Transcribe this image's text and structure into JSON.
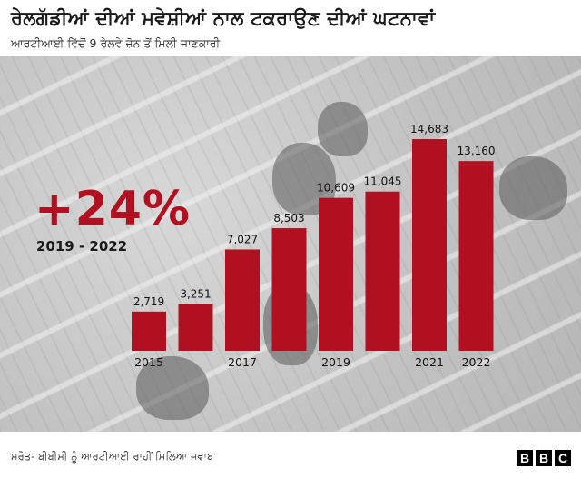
{
  "title": "ਰੇਲਗੱਡੀਆਂ ਦੀਆਂ ਮਵੇਸ਼ੀਆਂ ਨਾਲ ਟਕਰਾਉਣ ਦੀਆਂ ਘਟਨਾਵਾਂ",
  "subtitle": "ਆਰਟੀਆਈ ਵਿੱਚੋਂ 9 ਰੇਲਵੇ ਜ਼ੋਨ ਤੋਂ ਮਿਲੀ ਜਾਣਕਾਰੀ",
  "highlight": {
    "change": "+24%",
    "period": "2019 - 2022"
  },
  "source": "ਸਰੋਤ- ਬੀਬੀਸੀ ਨੂੰ ਆਰਟੀਆਈ ਰਾਹੀਂ ਮਿਲਿਆ ਜਵਾਬ",
  "brand": [
    "B",
    "B",
    "C"
  ],
  "colors": {
    "bar": "#b0101f",
    "accent": "#b0101f"
  },
  "chart_data": {
    "type": "bar",
    "categories": [
      "2015",
      "2016",
      "2017",
      "2018",
      "2019",
      "2020",
      "2021",
      "2022"
    ],
    "x_tick_labels": [
      "2015",
      "",
      "2017",
      "",
      "2019",
      "",
      "2021",
      "2022"
    ],
    "values": [
      2719,
      3251,
      7027,
      8503,
      10609,
      11045,
      14683,
      13160
    ],
    "data_labels": [
      "2,719",
      "3,251",
      "7,027",
      "8,503",
      "10,609",
      "11,045",
      "14,683",
      "13,160"
    ],
    "ylim": [
      0,
      14683
    ],
    "grid": false,
    "legend": "none"
  }
}
